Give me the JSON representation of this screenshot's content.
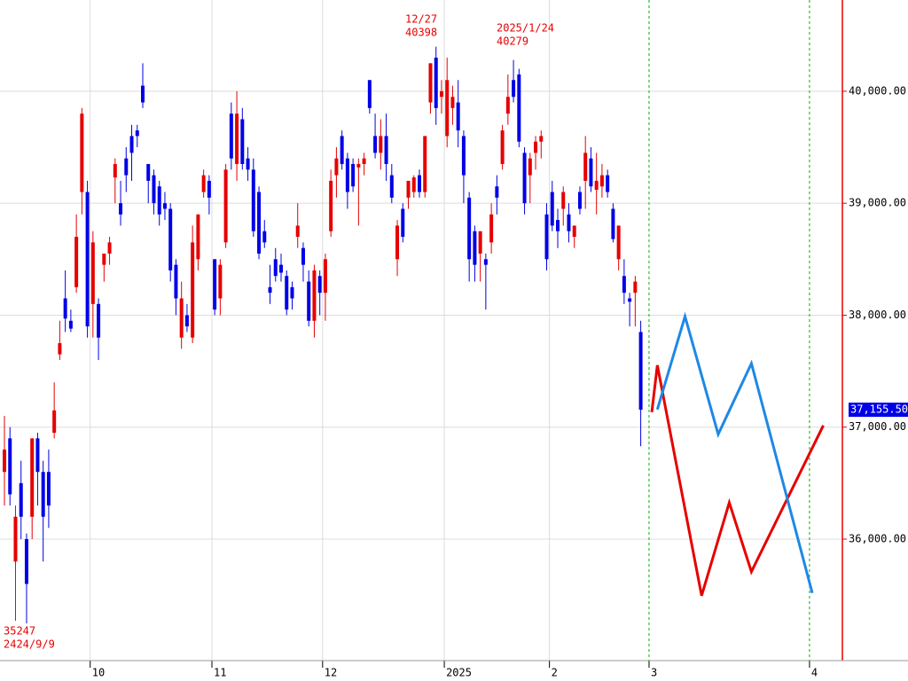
{
  "chart_data": {
    "type": "candlestick",
    "ylim": [
      34915,
      40815
    ],
    "yticks": [
      {
        "value": 36000,
        "label": "36,000.00"
      },
      {
        "value": 37000,
        "label": "37,000.00"
      },
      {
        "value": 38000,
        "label": "38,000.00"
      },
      {
        "value": 39000,
        "label": "39,000.00"
      },
      {
        "value": 40000,
        "label": "40,000.00"
      }
    ],
    "grid": true,
    "up_color": "#e60000",
    "down_color": "#0000e6",
    "axis_color": "#e60000",
    "marker_color": "#00b400",
    "categories": [
      null,
      null,
      null,
      null,
      null,
      null,
      null,
      null,
      null,
      null,
      null,
      null,
      null,
      null,
      null,
      null,
      "10",
      null,
      null,
      null,
      null,
      null,
      null,
      null,
      null,
      null,
      null,
      null,
      null,
      null,
      null,
      null,
      null,
      null,
      null,
      null,
      null,
      null,
      "11",
      null,
      null,
      null,
      null,
      null,
      null,
      null,
      null,
      null,
      null,
      null,
      null,
      null,
      null,
      null,
      null,
      null,
      null,
      null,
      "12",
      null,
      null,
      null,
      null,
      null,
      null,
      null,
      null,
      null,
      null,
      null,
      null,
      null,
      null,
      null,
      null,
      null,
      null,
      null,
      null,
      null,
      "2025",
      null,
      null,
      null,
      null,
      null,
      null,
      null,
      null,
      null,
      null,
      null,
      null,
      null,
      null,
      null,
      null,
      null,
      null,
      "2",
      null,
      null,
      null,
      null,
      null,
      null,
      null,
      null,
      null,
      null,
      null,
      null,
      null,
      null,
      null,
      null,
      null,
      "3",
      null,
      null,
      null,
      null,
      null,
      null,
      null,
      null,
      null,
      null,
      null,
      null,
      null,
      null,
      null,
      null,
      null,
      null,
      null,
      null,
      null,
      null,
      null,
      null,
      null,
      null,
      null,
      null,
      "4",
      null,
      null,
      null,
      null,
      null,
      null
    ],
    "candles": {
      "open": [
        36600,
        36900,
        35800,
        36500,
        36000,
        36200,
        36900,
        36600,
        36600,
        36950,
        37650,
        38150,
        37950,
        38250,
        39100,
        39100,
        38100,
        38100,
        38450,
        38550,
        39230,
        39000,
        39400,
        39600,
        39650,
        40050,
        39350,
        39250,
        39150,
        39000,
        38950,
        38450,
        37800,
        38000,
        37800,
        38500,
        39100,
        39200,
        38500,
        38150,
        38650,
        39800,
        39350,
        39750,
        39400,
        39300,
        39100,
        38750,
        38250,
        38500,
        38450,
        38350,
        38250,
        38700,
        38600,
        38300,
        37950,
        38350,
        38200,
        38750,
        39250,
        39600,
        39400,
        39350,
        39320,
        39350,
        40100,
        39600,
        39450,
        39600,
        39250,
        38500,
        38950,
        39050,
        39100,
        39250,
        39100,
        39900,
        40300,
        39950,
        39600,
        39850,
        39900,
        39600,
        39050,
        38750,
        38550,
        38500,
        38650,
        39150,
        39350,
        39800,
        40100,
        40150,
        39450,
        39250,
        39450,
        39550,
        38900,
        39100,
        38850,
        38950,
        38900,
        38700,
        39100,
        39200,
        39400,
        39120,
        39150,
        39250,
        38950,
        38500,
        38350,
        38150,
        38200,
        37850,
        null,
        null,
        null,
        null,
        null,
        null,
        null,
        null,
        null,
        null,
        null,
        null,
        null,
        null,
        null,
        null,
        null,
        null,
        null,
        null,
        null,
        null,
        null,
        null,
        null,
        null,
        null,
        null,
        null,
        null,
        null,
        null,
        null,
        null,
        null,
        null
      ],
      "high": [
        37100,
        37000,
        36300,
        36700,
        36050,
        36900,
        36950,
        36700,
        36800,
        37400,
        37950,
        38400,
        38050,
        38900,
        39850,
        39200,
        38750,
        38150,
        38550,
        38700,
        39400,
        39200,
        39500,
        39700,
        39700,
        40250,
        39350,
        39300,
        39200,
        39100,
        39000,
        38500,
        38300,
        38100,
        38800,
        38900,
        39300,
        39250,
        38500,
        38500,
        39350,
        39900,
        40000,
        39850,
        39500,
        39400,
        39150,
        38850,
        38450,
        38600,
        38550,
        38400,
        38300,
        39000,
        38650,
        38400,
        38450,
        38400,
        38550,
        39300,
        39500,
        39650,
        39450,
        39400,
        39400,
        39450,
        40100,
        39800,
        39750,
        39800,
        39350,
        38850,
        39000,
        39200,
        39250,
        39300,
        39600,
        40250,
        40398,
        40100,
        40300,
        40050,
        40100,
        39650,
        39100,
        38800,
        38700,
        38550,
        39000,
        39250,
        39700,
        40150,
        40279,
        40200,
        39500,
        39450,
        39600,
        39650,
        39000,
        39200,
        38950,
        39150,
        39000,
        38800,
        39150,
        39600,
        39500,
        39450,
        39350,
        39300,
        39000,
        38800,
        38500,
        38200,
        38350,
        37950,
        null,
        null,
        null,
        null,
        null,
        null,
        null,
        null,
        null,
        null,
        null,
        null,
        null,
        null,
        null,
        null,
        null,
        null,
        null,
        null,
        null,
        null,
        null,
        null,
        null,
        null,
        null,
        null,
        null,
        null,
        null,
        null,
        null,
        null,
        null,
        null
      ],
      "low": [
        36300,
        36300,
        35270,
        36000,
        35247,
        36000,
        36300,
        35800,
        36100,
        36900,
        37600,
        37850,
        37850,
        38200,
        38900,
        37800,
        37800,
        37600,
        38300,
        38450,
        39000,
        38800,
        39100,
        39200,
        39500,
        39850,
        39000,
        38900,
        38800,
        38850,
        38300,
        38000,
        37700,
        37850,
        37750,
        38400,
        39050,
        38900,
        38000,
        38000,
        38600,
        39300,
        39200,
        39300,
        39200,
        38700,
        38500,
        38600,
        38100,
        38300,
        38300,
        38000,
        38050,
        38600,
        38300,
        37900,
        37800,
        38000,
        37950,
        38700,
        39050,
        39300,
        38950,
        39100,
        38800,
        39250,
        39800,
        39400,
        39300,
        39200,
        39000,
        38350,
        38650,
        38950,
        39050,
        39050,
        39050,
        39800,
        39700,
        39800,
        39500,
        39700,
        39500,
        39000,
        38300,
        38300,
        38300,
        38050,
        38550,
        38900,
        39300,
        39700,
        39900,
        39500,
        38900,
        39000,
        39300,
        39400,
        38400,
        38750,
        38600,
        38800,
        38650,
        38600,
        38900,
        38950,
        39100,
        38900,
        39050,
        39050,
        38650,
        38400,
        38100,
        37900,
        37900,
        36830,
        null,
        null,
        null,
        null,
        null,
        null,
        null,
        null,
        null,
        null,
        null,
        null,
        null,
        null,
        null,
        null,
        null,
        null,
        null,
        null,
        null,
        null,
        null,
        null,
        null,
        null,
        null,
        null,
        null,
        null,
        null,
        null,
        null,
        null,
        null,
        null
      ],
      "close": [
        36800,
        36400,
        36200,
        36200,
        35600,
        36900,
        36600,
        36200,
        36300,
        37150,
        37750,
        37970,
        37880,
        38700,
        39800,
        37900,
        38650,
        37800,
        38550,
        38650,
        39350,
        38900,
        39250,
        39450,
        39600,
        39900,
        39200,
        39000,
        38900,
        38950,
        38400,
        38150,
        38150,
        37900,
        38650,
        38900,
        39250,
        39050,
        38050,
        38450,
        39300,
        39400,
        39800,
        39350,
        39300,
        38750,
        38550,
        38650,
        38200,
        38350,
        38380,
        38050,
        38150,
        38800,
        38450,
        37950,
        38400,
        38200,
        38500,
        39200,
        39400,
        39350,
        39100,
        39150,
        39350,
        39400,
        39850,
        39450,
        39600,
        39350,
        39050,
        38800,
        38700,
        39200,
        39230,
        39100,
        39600,
        40250,
        39850,
        40000,
        40100,
        39950,
        39650,
        39250,
        38500,
        38450,
        38750,
        38450,
        38900,
        39050,
        39650,
        39950,
        39950,
        39550,
        39000,
        39400,
        39550,
        39600,
        38500,
        38800,
        38750,
        39100,
        38750,
        38800,
        38950,
        39450,
        39150,
        39200,
        39250,
        39100,
        38680,
        38800,
        38200,
        38120,
        38300,
        37155.5,
        null,
        null,
        null,
        null,
        null,
        null,
        null,
        null,
        null,
        null,
        null,
        null,
        null,
        null,
        null,
        null,
        null,
        null,
        null,
        null,
        null,
        null,
        null,
        null,
        null,
        null,
        null,
        null,
        null,
        null,
        null,
        null,
        null,
        null,
        null,
        null
      ]
    },
    "series": [
      {
        "color": "#e60000",
        "x": [
          117,
          118,
          126,
          131,
          135,
          148
        ],
        "values": [
          37134,
          37553,
          35495,
          36326,
          35709,
          37015
        ]
      },
      {
        "color": "#1e88e5",
        "x": [
          118,
          123,
          129,
          135,
          146
        ],
        "values": [
          37158,
          37989,
          36936,
          37569,
          35519
        ]
      }
    ],
    "last_price": {
      "value": 37155.5,
      "label": "37,155.50"
    },
    "annotations": [
      {
        "lines": [
          "12/27",
          "40398"
        ]
      },
      {
        "lines": [
          "2025/1/24",
          "40279"
        ]
      },
      {
        "lines": [
          "35247",
          "2424/9/9"
        ]
      }
    ]
  }
}
